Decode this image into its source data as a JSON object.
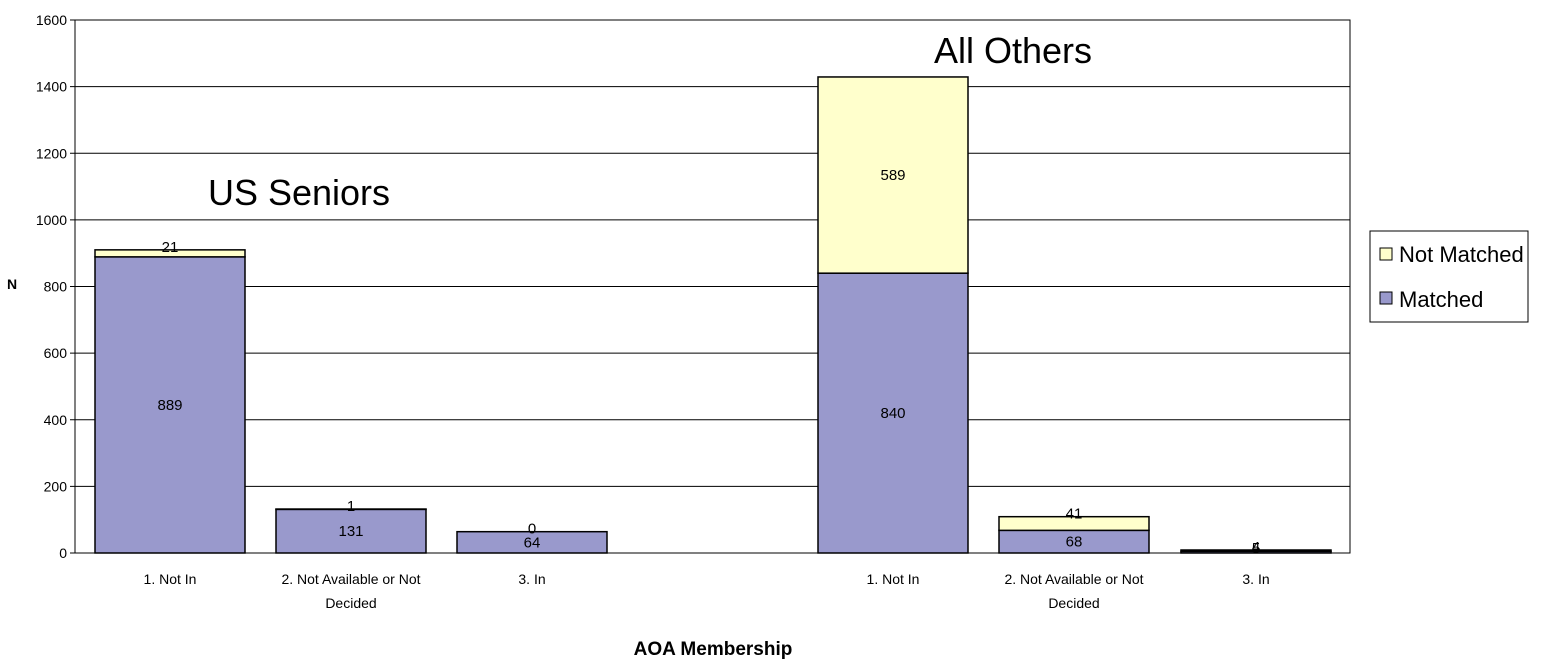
{
  "chart_data": {
    "type": "bar",
    "stacked": true,
    "xlabel": "AOA Membership",
    "ylabel": "N",
    "ylim": [
      0,
      1600
    ],
    "yticks": [
      0,
      200,
      400,
      600,
      800,
      1000,
      1200,
      1400,
      1600
    ],
    "grid": true,
    "legend_position": "right",
    "groups": [
      {
        "label": "US Seniors",
        "categories": [
          [
            "1. Not In"
          ],
          [
            "2. Not Available or Not",
            "Decided"
          ],
          [
            "3. In"
          ]
        ],
        "matched": [
          889,
          131,
          64
        ],
        "not_matched": [
          21,
          1,
          0
        ]
      },
      {
        "label": "All Others",
        "categories": [
          [
            "1. Not In"
          ],
          [
            "2. Not Available or Not",
            "Decided"
          ],
          [
            "3. In"
          ]
        ],
        "matched": [
          840,
          68,
          5
        ],
        "not_matched": [
          589,
          41,
          4
        ]
      }
    ],
    "series": [
      {
        "name": "Not Matched",
        "color": "#ffffcc"
      },
      {
        "name": "Matched",
        "color": "#9999cc"
      }
    ]
  }
}
